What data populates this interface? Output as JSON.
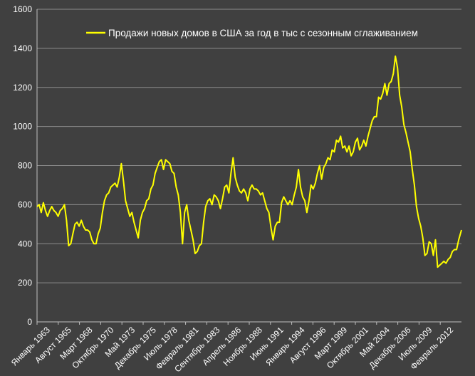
{
  "chart_data": {
    "type": "line",
    "legend_position": "top-right",
    "grid": "horizontal",
    "colors": {
      "background": "#404040",
      "gridline": "#8c8c8c",
      "axis": "#bfbfbf",
      "series": "#ffff00",
      "text": "#ffffff"
    },
    "ylim": [
      0,
      1600
    ],
    "y_ticks": [
      0,
      200,
      400,
      600,
      800,
      1000,
      1200,
      1400,
      1600
    ],
    "x_range": [
      "1963-01",
      "2013-05"
    ],
    "x_tick_labels": [
      "Январь 1963",
      "Август 1965",
      "Март 1968",
      "Октябрь 1970",
      "Май 1973",
      "Декабрь 1975",
      "Июль 1978",
      "Февраль 1981",
      "Сентябрь 1983",
      "Апрель 1986",
      "Ноябрь 1988",
      "Июнь 1991",
      "Январь 1994",
      "Август 1996",
      "Март 1999",
      "Октябрь 2001",
      "Май 2004",
      "Декабрь 2006",
      "Июль 2009",
      "Февраль 2012"
    ],
    "series": [
      {
        "name": "Продажи новых домов в США за год в тыс с сезонным сглаживанием",
        "color": "#ffff00",
        "points": [
          [
            "1963-01",
            590
          ],
          [
            "1963-04",
            600
          ],
          [
            "1963-07",
            560
          ],
          [
            "1963-10",
            610
          ],
          [
            "1964-01",
            570
          ],
          [
            "1964-04",
            540
          ],
          [
            "1964-07",
            570
          ],
          [
            "1964-10",
            590
          ],
          [
            "1965-01",
            570
          ],
          [
            "1965-04",
            560
          ],
          [
            "1965-07",
            540
          ],
          [
            "1965-10",
            570
          ],
          [
            "1966-01",
            580
          ],
          [
            "1966-04",
            600
          ],
          [
            "1966-07",
            520
          ],
          [
            "1966-10",
            390
          ],
          [
            "1967-01",
            400
          ],
          [
            "1967-04",
            450
          ],
          [
            "1967-07",
            500
          ],
          [
            "1967-10",
            510
          ],
          [
            "1968-01",
            490
          ],
          [
            "1968-04",
            520
          ],
          [
            "1968-07",
            490
          ],
          [
            "1968-10",
            470
          ],
          [
            "1969-01",
            470
          ],
          [
            "1969-04",
            460
          ],
          [
            "1969-07",
            420
          ],
          [
            "1969-10",
            400
          ],
          [
            "1970-01",
            400
          ],
          [
            "1970-04",
            450
          ],
          [
            "1970-07",
            480
          ],
          [
            "1970-10",
            560
          ],
          [
            "1971-01",
            620
          ],
          [
            "1971-04",
            650
          ],
          [
            "1971-07",
            660
          ],
          [
            "1971-10",
            690
          ],
          [
            "1972-01",
            700
          ],
          [
            "1972-04",
            710
          ],
          [
            "1972-07",
            690
          ],
          [
            "1972-10",
            740
          ],
          [
            "1973-01",
            810
          ],
          [
            "1973-04",
            720
          ],
          [
            "1973-07",
            620
          ],
          [
            "1973-10",
            580
          ],
          [
            "1974-01",
            540
          ],
          [
            "1974-04",
            560
          ],
          [
            "1974-07",
            510
          ],
          [
            "1974-10",
            470
          ],
          [
            "1975-01",
            430
          ],
          [
            "1975-04",
            520
          ],
          [
            "1975-07",
            560
          ],
          [
            "1975-10",
            580
          ],
          [
            "1976-01",
            620
          ],
          [
            "1976-04",
            630
          ],
          [
            "1976-07",
            680
          ],
          [
            "1976-10",
            700
          ],
          [
            "1977-01",
            760
          ],
          [
            "1977-04",
            790
          ],
          [
            "1977-07",
            820
          ],
          [
            "1977-10",
            830
          ],
          [
            "1978-01",
            780
          ],
          [
            "1978-04",
            830
          ],
          [
            "1978-07",
            820
          ],
          [
            "1978-10",
            810
          ],
          [
            "1979-01",
            770
          ],
          [
            "1979-04",
            760
          ],
          [
            "1979-07",
            690
          ],
          [
            "1979-10",
            650
          ],
          [
            "1980-01",
            560
          ],
          [
            "1980-04",
            400
          ],
          [
            "1980-07",
            560
          ],
          [
            "1980-10",
            600
          ],
          [
            "1981-01",
            520
          ],
          [
            "1981-04",
            470
          ],
          [
            "1981-07",
            420
          ],
          [
            "1981-10",
            350
          ],
          [
            "1982-01",
            360
          ],
          [
            "1982-04",
            390
          ],
          [
            "1982-07",
            400
          ],
          [
            "1982-10",
            510
          ],
          [
            "1983-01",
            590
          ],
          [
            "1983-04",
            620
          ],
          [
            "1983-07",
            630
          ],
          [
            "1983-10",
            600
          ],
          [
            "1984-01",
            650
          ],
          [
            "1984-04",
            640
          ],
          [
            "1984-07",
            620
          ],
          [
            "1984-10",
            580
          ],
          [
            "1985-01",
            630
          ],
          [
            "1985-04",
            690
          ],
          [
            "1985-07",
            700
          ],
          [
            "1985-10",
            660
          ],
          [
            "1986-01",
            760
          ],
          [
            "1986-04",
            840
          ],
          [
            "1986-07",
            740
          ],
          [
            "1986-10",
            700
          ],
          [
            "1987-01",
            670
          ],
          [
            "1987-04",
            660
          ],
          [
            "1987-07",
            680
          ],
          [
            "1987-10",
            660
          ],
          [
            "1988-01",
            620
          ],
          [
            "1988-04",
            680
          ],
          [
            "1988-07",
            700
          ],
          [
            "1988-10",
            680
          ],
          [
            "1989-01",
            680
          ],
          [
            "1989-04",
            670
          ],
          [
            "1989-07",
            650
          ],
          [
            "1989-10",
            660
          ],
          [
            "1990-01",
            620
          ],
          [
            "1990-04",
            580
          ],
          [
            "1990-07",
            560
          ],
          [
            "1990-10",
            480
          ],
          [
            "1991-01",
            420
          ],
          [
            "1991-04",
            490
          ],
          [
            "1991-07",
            510
          ],
          [
            "1991-10",
            510
          ],
          [
            "1992-01",
            610
          ],
          [
            "1992-04",
            640
          ],
          [
            "1992-07",
            620
          ],
          [
            "1992-10",
            600
          ],
          [
            "1993-01",
            620
          ],
          [
            "1993-04",
            600
          ],
          [
            "1993-07",
            650
          ],
          [
            "1993-10",
            690
          ],
          [
            "1994-01",
            780
          ],
          [
            "1994-04",
            690
          ],
          [
            "1994-07",
            640
          ],
          [
            "1994-10",
            620
          ],
          [
            "1995-01",
            560
          ],
          [
            "1995-04",
            620
          ],
          [
            "1995-07",
            700
          ],
          [
            "1995-10",
            680
          ],
          [
            "1996-01",
            710
          ],
          [
            "1996-04",
            760
          ],
          [
            "1996-07",
            800
          ],
          [
            "1996-10",
            730
          ],
          [
            "1997-01",
            790
          ],
          [
            "1997-04",
            810
          ],
          [
            "1997-07",
            840
          ],
          [
            "1997-10",
            830
          ],
          [
            "1998-01",
            880
          ],
          [
            "1998-04",
            870
          ],
          [
            "1998-07",
            930
          ],
          [
            "1998-10",
            920
          ],
          [
            "1999-01",
            950
          ],
          [
            "1999-04",
            890
          ],
          [
            "1999-07",
            900
          ],
          [
            "1999-10",
            870
          ],
          [
            "2000-01",
            900
          ],
          [
            "2000-04",
            850
          ],
          [
            "2000-07",
            870
          ],
          [
            "2000-10",
            920
          ],
          [
            "2001-01",
            940
          ],
          [
            "2001-04",
            880
          ],
          [
            "2001-07",
            900
          ],
          [
            "2001-10",
            930
          ],
          [
            "2002-01",
            900
          ],
          [
            "2002-04",
            950
          ],
          [
            "2002-07",
            990
          ],
          [
            "2002-10",
            1030
          ],
          [
            "2003-01",
            1050
          ],
          [
            "2003-04",
            1050
          ],
          [
            "2003-07",
            1150
          ],
          [
            "2003-10",
            1140
          ],
          [
            "2004-01",
            1170
          ],
          [
            "2004-04",
            1220
          ],
          [
            "2004-07",
            1160
          ],
          [
            "2004-10",
            1220
          ],
          [
            "2005-01",
            1230
          ],
          [
            "2005-04",
            1270
          ],
          [
            "2005-07",
            1360
          ],
          [
            "2005-10",
            1300
          ],
          [
            "2006-01",
            1160
          ],
          [
            "2006-04",
            1100
          ],
          [
            "2006-07",
            1010
          ],
          [
            "2006-10",
            970
          ],
          [
            "2007-01",
            920
          ],
          [
            "2007-04",
            870
          ],
          [
            "2007-07",
            780
          ],
          [
            "2007-10",
            700
          ],
          [
            "2008-01",
            590
          ],
          [
            "2008-04",
            530
          ],
          [
            "2008-07",
            490
          ],
          [
            "2008-10",
            430
          ],
          [
            "2009-01",
            340
          ],
          [
            "2009-04",
            350
          ],
          [
            "2009-07",
            410
          ],
          [
            "2009-10",
            400
          ],
          [
            "2010-01",
            340
          ],
          [
            "2010-04",
            420
          ],
          [
            "2010-07",
            280
          ],
          [
            "2010-10",
            290
          ],
          [
            "2011-01",
            300
          ],
          [
            "2011-04",
            310
          ],
          [
            "2011-07",
            300
          ],
          [
            "2011-10",
            320
          ],
          [
            "2012-01",
            330
          ],
          [
            "2012-04",
            360
          ],
          [
            "2012-07",
            370
          ],
          [
            "2012-10",
            370
          ],
          [
            "2013-01",
            420
          ],
          [
            "2013-05",
            470
          ]
        ]
      }
    ]
  }
}
